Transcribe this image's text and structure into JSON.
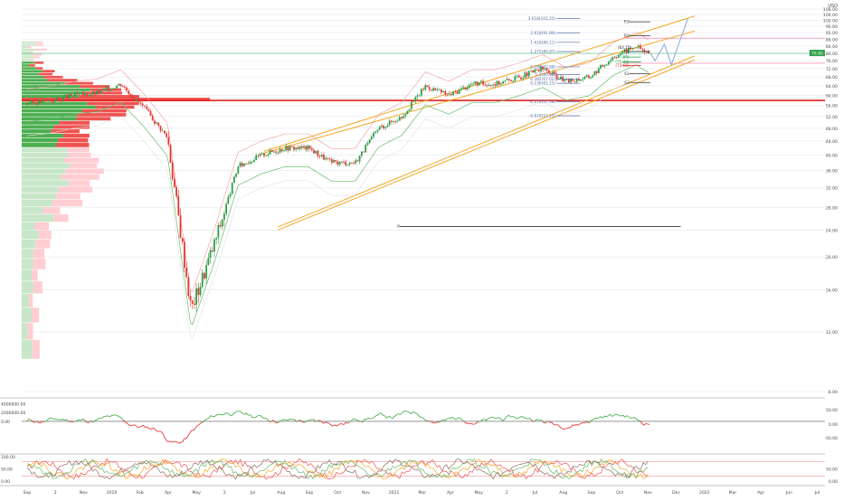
{
  "chart_data": [
    {
      "type": "line",
      "subtype": "candlestick-with-overlays",
      "title": "",
      "currency": "USD",
      "y_scale": "log",
      "ylim": [
        8,
        108
      ],
      "y_ticks": [
        "108.00",
        "104.00",
        "100.00",
        "96.00",
        "92.00",
        "88.00",
        "84.00",
        "80.00",
        "76.00",
        "72.00",
        "68.00",
        "64.00",
        "60.00",
        "56.00",
        "52.00",
        "48.00",
        "44.00",
        "40.00",
        "36.00",
        "32.00",
        "28.00",
        "24.00",
        "20.00",
        "16.00",
        "12.00",
        "8.00"
      ],
      "x_ticks": [
        "Sep",
        "2",
        "Nov",
        "2020",
        "Feb",
        "Apr",
        "May",
        "2",
        "Jul",
        "Aug",
        "Sep",
        "Oct",
        "Nov",
        "2021",
        "Mar",
        "Apr",
        "May",
        "2",
        "Jul",
        "Aug",
        "Sep",
        "Oct",
        "Nov",
        "Dec",
        "2022",
        "Mar",
        "Apr",
        "Jun",
        "Jul"
      ],
      "price_series": {
        "name": "Price",
        "points": [
          [
            "Sep 2019",
            57
          ],
          [
            "Oct 2019",
            58
          ],
          [
            "Nov 2019",
            60
          ],
          [
            "Dec 2019",
            61
          ],
          [
            "Jan 2020",
            65
          ],
          [
            "Feb 2020",
            55
          ],
          [
            "Mar 2020",
            45
          ],
          [
            "Apr 2020",
            14
          ],
          [
            "May 2020",
            22
          ],
          [
            "Jun 2020",
            37
          ],
          [
            "Jul 2020",
            40
          ],
          [
            "Aug 2020",
            42
          ],
          [
            "Sep 2020",
            42
          ],
          [
            "Oct 2020",
            38
          ],
          [
            "Nov 2020",
            38
          ],
          [
            "Dec 2020",
            48
          ],
          [
            "Jan 2021",
            52
          ],
          [
            "Feb 2021",
            64
          ],
          [
            "Mar 2021",
            60
          ],
          [
            "Apr 2021",
            65
          ],
          [
            "May 2021",
            65
          ],
          [
            "Jun 2021",
            68
          ],
          [
            "Jul 2021",
            72
          ],
          [
            "Aug 2021",
            66
          ],
          [
            "Sep 2021",
            68
          ],
          [
            "Oct 2021",
            78
          ],
          [
            "Nov 2021",
            84
          ],
          [
            "Nov 2021 end",
            79
          ]
        ]
      },
      "projection_path": [
        [
          80,
          "Nov 2021"
        ],
        [
          76,
          "Nov 2021"
        ],
        [
          85,
          "Dec 2021"
        ],
        [
          74,
          "Dec 2021"
        ],
        [
          103,
          "Jan 2022"
        ]
      ],
      "fib_levels": [
        {
          "label": "3.618(101.25)",
          "value": 101.25
        },
        {
          "label": "2.618(91.89)",
          "value": 91.89
        },
        {
          "label": "1.618(86.11)",
          "value": 86.11
        },
        {
          "label": "1.272(80.87)",
          "value": 80.87
        },
        {
          "label": "0.786(72.88)",
          "value": 72.88
        },
        {
          "label": "0.5(69.08)",
          "value": 69.08
        },
        {
          "label": "0.382(67.02)",
          "value": 67.02
        },
        {
          "label": "0.236(65.15)",
          "value": 65.15
        },
        {
          "label": "-0.272(57.48)",
          "value": 57.48
        },
        {
          "label": "-0.618(52.25)",
          "value": 52.25
        }
      ],
      "pivot_levels": [
        {
          "label": "R3",
          "value": 99
        },
        {
          "label": "R2",
          "value": 90
        },
        {
          "label": "R1",
          "value": 80.9
        },
        {
          "label": "(77.89)",
          "value": 77.89
        },
        {
          "label": "(75.39)",
          "value": 75.39
        },
        {
          "label": "(73.56)",
          "value": 73.56
        },
        {
          "label": "S1",
          "value": 69.5
        },
        {
          "label": "S3",
          "value": 65.5
        },
        {
          "label": "P",
          "value": 24.6
        }
      ],
      "callouts": [
        "(83.15)"
      ],
      "horizontal_lines": [
        {
          "name": "support-line",
          "value": 58,
          "color": "#e0201a"
        },
        {
          "name": "price-line",
          "value": 79.85,
          "color": "#7ed4a0"
        },
        {
          "name": "pink-upper",
          "value": 88.6,
          "color": "#f49ac1"
        },
        {
          "name": "pink-lower",
          "value": 74.7,
          "color": "#f49ac1"
        }
      ],
      "price_labels": [
        "79.85",
        "79.22"
      ],
      "current_price_color": "#2e9e48"
    },
    {
      "type": "line",
      "title": "",
      "ylim": [
        -7000000,
        4500000
      ],
      "y_ticks_left": [
        "4000000.00",
        "2000000.00",
        "0.00"
      ],
      "y_ticks_right": [
        "50.00",
        "0.00",
        "-50.00"
      ],
      "zero_line": 0,
      "series": [
        {
          "values_description_positive_color": "#4caf50",
          "negative_color": "#e53935"
        }
      ]
    },
    {
      "type": "line",
      "title": "",
      "ylim": [
        0,
        100
      ],
      "y_ticks": [
        "100.00",
        "50.00",
        "0.00"
      ],
      "y_ticks_right": [
        "50.00",
        "0.00"
      ],
      "bands": [
        80,
        20
      ]
    }
  ],
  "colors": {
    "up": "#2e9e48",
    "down": "#e53935",
    "channel": "#f5a623",
    "fib": "#5b6fa6",
    "axis_text": "#4a4a4a",
    "grid": "#eef0f5"
  },
  "axis_unit": "USD"
}
